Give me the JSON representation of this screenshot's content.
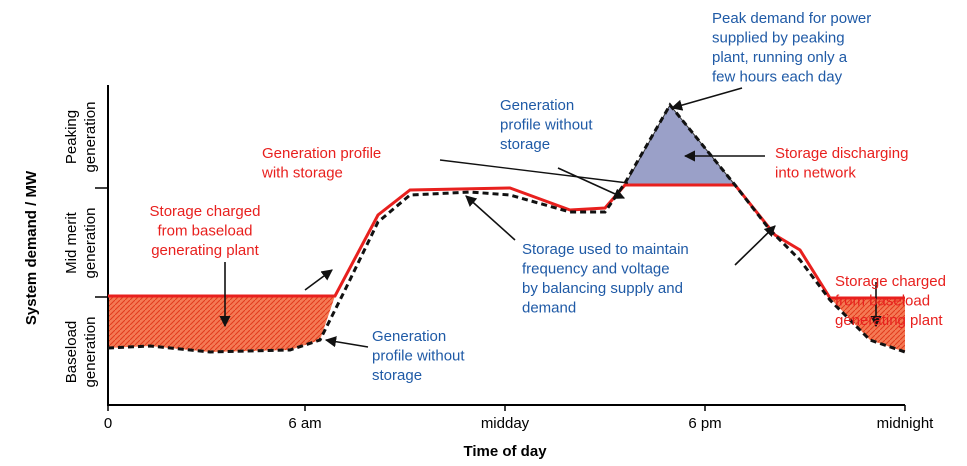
{
  "axes": {
    "y_label": "System demand / MW",
    "x_label": "Time of day",
    "x_ticks": [
      "0",
      "6 am",
      "midday",
      "6 pm",
      "midnight"
    ],
    "bands": [
      [
        "Peaking",
        "generation"
      ],
      [
        "Mid merit",
        "generation"
      ],
      [
        "Baseload",
        "generation"
      ]
    ]
  },
  "annotations": {
    "charged_left": [
      "Storage charged",
      "from baseload",
      "generating plant"
    ],
    "profile_with": [
      "Generation profile",
      "with storage"
    ],
    "discharging": [
      "Storage discharging",
      "into network"
    ],
    "charged_right": [
      "Storage charged",
      "from baseload",
      "generating plant"
    ],
    "peak": [
      "Peak demand for power",
      "supplied by peaking",
      "plant, running only a",
      "few hours each day"
    ],
    "without_top": [
      "Generation",
      "profile without",
      "storage"
    ],
    "used": [
      "Storage used to maintain",
      "frequency and voltage",
      "by balancing supply and",
      "demand"
    ],
    "without_bottom": [
      "Generation",
      "profile without",
      "storage"
    ]
  }
}
